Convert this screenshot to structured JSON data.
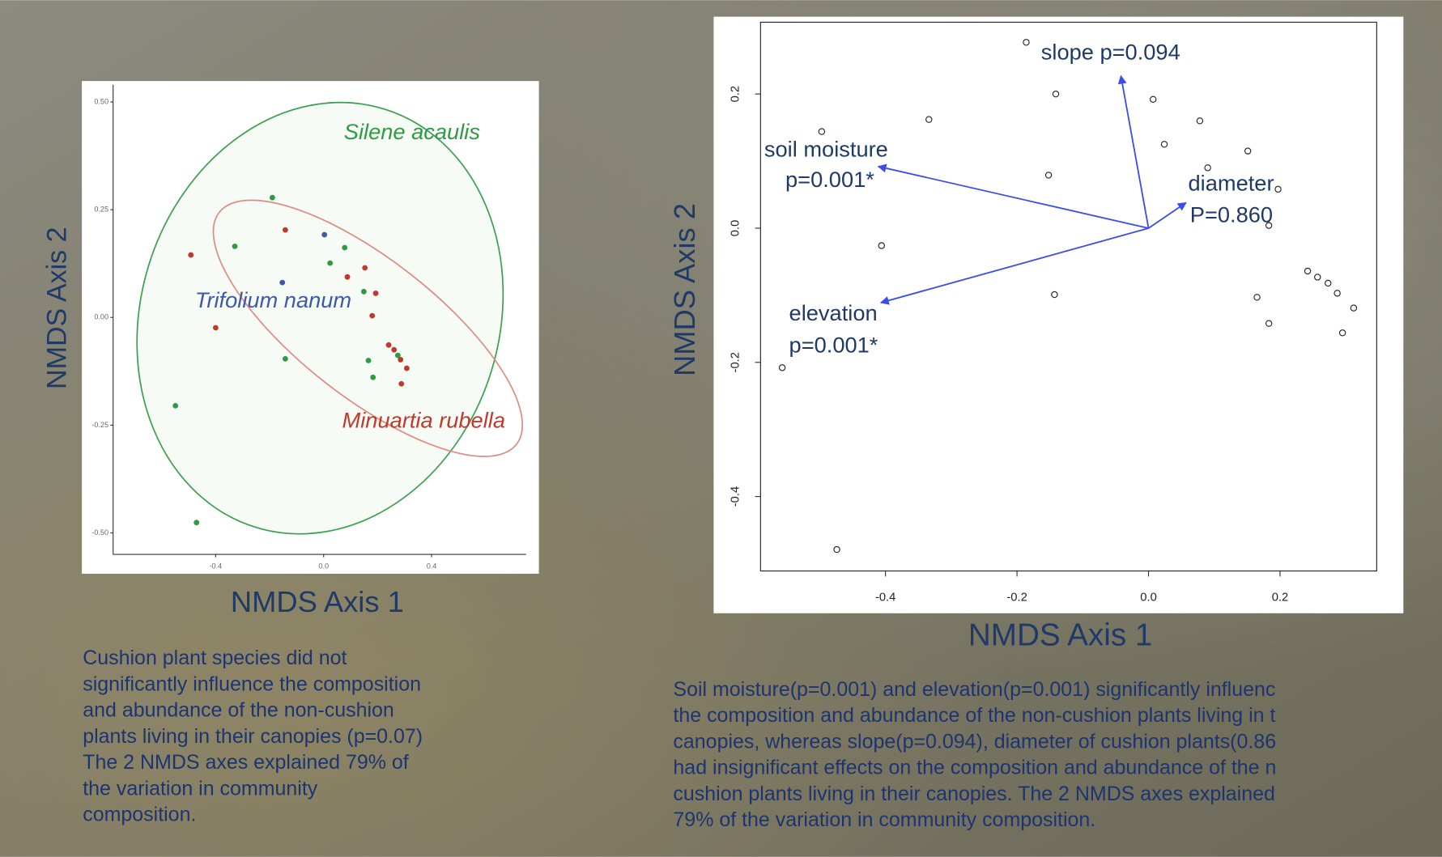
{
  "chart_data": [
    {
      "type": "scatter",
      "x_label": "NMDS Axis 1",
      "y_label": "NMDS Axis 2",
      "xlim": [
        -0.78,
        0.75
      ],
      "ylim": [
        -0.55,
        0.54
      ],
      "xticks": [
        -0.4,
        {
          "value": 0,
          "label": "0.0"
        },
        0.4
      ],
      "yticks": [
        {
          "value": 0.5,
          "label": "0.50"
        },
        0.25,
        {
          "value": 0,
          "label": "0.00"
        },
        -0.25,
        {
          "value": -0.5,
          "label": "-0.50"
        }
      ],
      "series": [
        {
          "name": "Silene acaulis",
          "color": "#2f9a42",
          "x": [
            -0.19,
            -0.329,
            0.024,
            0.078,
            0.149,
            -0.142,
            0.166,
            0.183,
            0.275,
            -0.549,
            -0.471
          ],
          "y": [
            0.278,
            0.165,
            0.126,
            0.162,
            0.06,
            -0.096,
            -0.1,
            -0.139,
            -0.088,
            -0.205,
            -0.476
          ]
        },
        {
          "name": "Minuartia rubella",
          "color": "#c0392b",
          "x": [
            -0.492,
            -0.142,
            0.088,
            0.153,
            0.193,
            0.18,
            -0.4,
            0.241,
            0.261,
            0.285,
            0.308,
            0.288
          ],
          "y": [
            0.145,
            0.203,
            0.094,
            0.115,
            0.056,
            0.004,
            -0.024,
            -0.064,
            -0.075,
            -0.098,
            -0.118,
            -0.154
          ]
        },
        {
          "name": "Trifolium nanum",
          "color": "#3d5aa8",
          "x": [
            0.003,
            -0.153
          ],
          "y": [
            0.192,
            0.081
          ]
        }
      ]
    },
    {
      "type": "biplot",
      "x_label": "NMDS Axis 1",
      "y_label": "NMDS Axis 2",
      "xlim": [
        -0.59,
        0.347
      ],
      "ylim": [
        -0.511,
        0.307
      ],
      "xticks": [
        -0.4,
        -0.2,
        {
          "value": 0,
          "label": "0.0"
        },
        0.2
      ],
      "yticks": [
        0.2,
        {
          "value": 0,
          "label": "0.0"
        },
        -0.2,
        -0.4
      ],
      "points": {
        "x": [
          -0.186,
          -0.141,
          0.007,
          -0.334,
          0.078,
          -0.497,
          0.024,
          0.151,
          0.09,
          -0.152,
          0.197,
          -0.406,
          0.183,
          -0.143,
          0.165,
          0.242,
          0.257,
          0.273,
          0.287,
          0.312,
          0.183,
          0.295,
          -0.557,
          -0.474
        ],
        "y": [
          0.277,
          0.2,
          0.192,
          0.162,
          0.16,
          0.144,
          0.125,
          0.115,
          0.09,
          0.079,
          0.058,
          -0.026,
          0.004,
          -0.099,
          -0.103,
          -0.064,
          -0.073,
          -0.082,
          -0.097,
          -0.119,
          -0.142,
          -0.156,
          -0.208,
          -0.479
        ]
      },
      "vector_color": "#3b4cf0",
      "vectors": [
        {
          "label": [
            "slope p=0.094"
          ],
          "x": -0.042,
          "y": 0.227
        },
        {
          "label": [
            "soil moisture",
            "p=0.001*"
          ],
          "x": -0.411,
          "y": 0.092
        },
        {
          "label": [
            "diameter",
            "P=0.860"
          ],
          "x": 0.057,
          "y": 0.038
        },
        {
          "label": [
            "elevation",
            "p=0.001*"
          ],
          "x": -0.407,
          "y": -0.111
        }
      ]
    }
  ],
  "captions": [
    [
      "Cushion plant species did not",
      "significantly influence the composition",
      "and abundance of the non-cushion",
      "plants living in their canopies (p=0.07)",
      "The 2 NMDS axes explained 79% of",
      "the variation in community",
      "composition."
    ],
    [
      "Soil moisture(p=0.001) and elevation(p=0.001) significantly influenc",
      "the composition and abundance of the non-cushion plants living in t",
      "canopies, whereas slope(p=0.094), diameter of cushion plants(0.86",
      "had insignificant effects on the composition and abundance of the n",
      "cushion plants living in their canopies.  The 2 NMDS axes explained",
      "79% of the variation in community composition."
    ]
  ]
}
